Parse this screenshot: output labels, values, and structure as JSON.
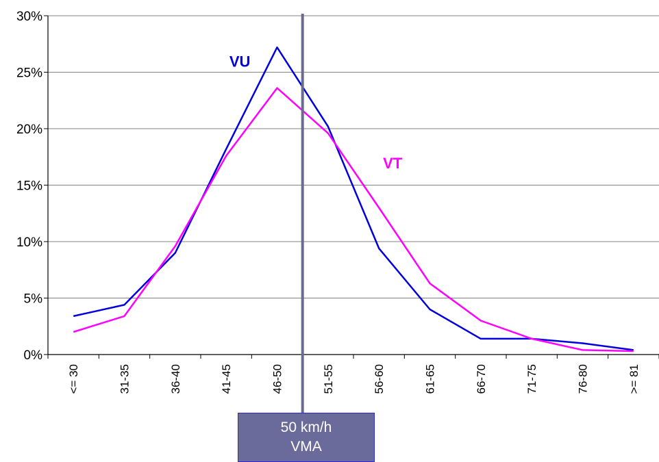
{
  "chart_data": {
    "type": "line",
    "categories": [
      "<= 30",
      "31-35",
      "36-40",
      "41-45",
      "46-50",
      "51-55",
      "56-60",
      "61-65",
      "66-70",
      "71-75",
      "76-80",
      ">= 81"
    ],
    "series": [
      {
        "name": "VU",
        "color": "#0000dd",
        "values": [
          3.4,
          4.4,
          9.0,
          18.2,
          27.2,
          20.2,
          9.4,
          4.0,
          1.4,
          1.4,
          1.0,
          0.4
        ]
      },
      {
        "name": "VT",
        "color": "#ff00ff",
        "values": [
          2.0,
          3.4,
          9.6,
          17.6,
          23.6,
          19.6,
          13.0,
          6.3,
          3.0,
          1.4,
          0.4,
          0.3
        ]
      }
    ],
    "y_ticks": [
      "0%",
      "5%",
      "10%",
      "15%",
      "20%",
      "25%",
      "30%"
    ],
    "ylim": [
      0,
      30
    ],
    "y_unit": "%",
    "grid": true,
    "reference_line": {
      "position_between": [
        "46-50",
        "51-55"
      ],
      "color": "#6b6b8f"
    },
    "annotation": {
      "line1": "50 km/h",
      "line2": "VMA"
    }
  }
}
